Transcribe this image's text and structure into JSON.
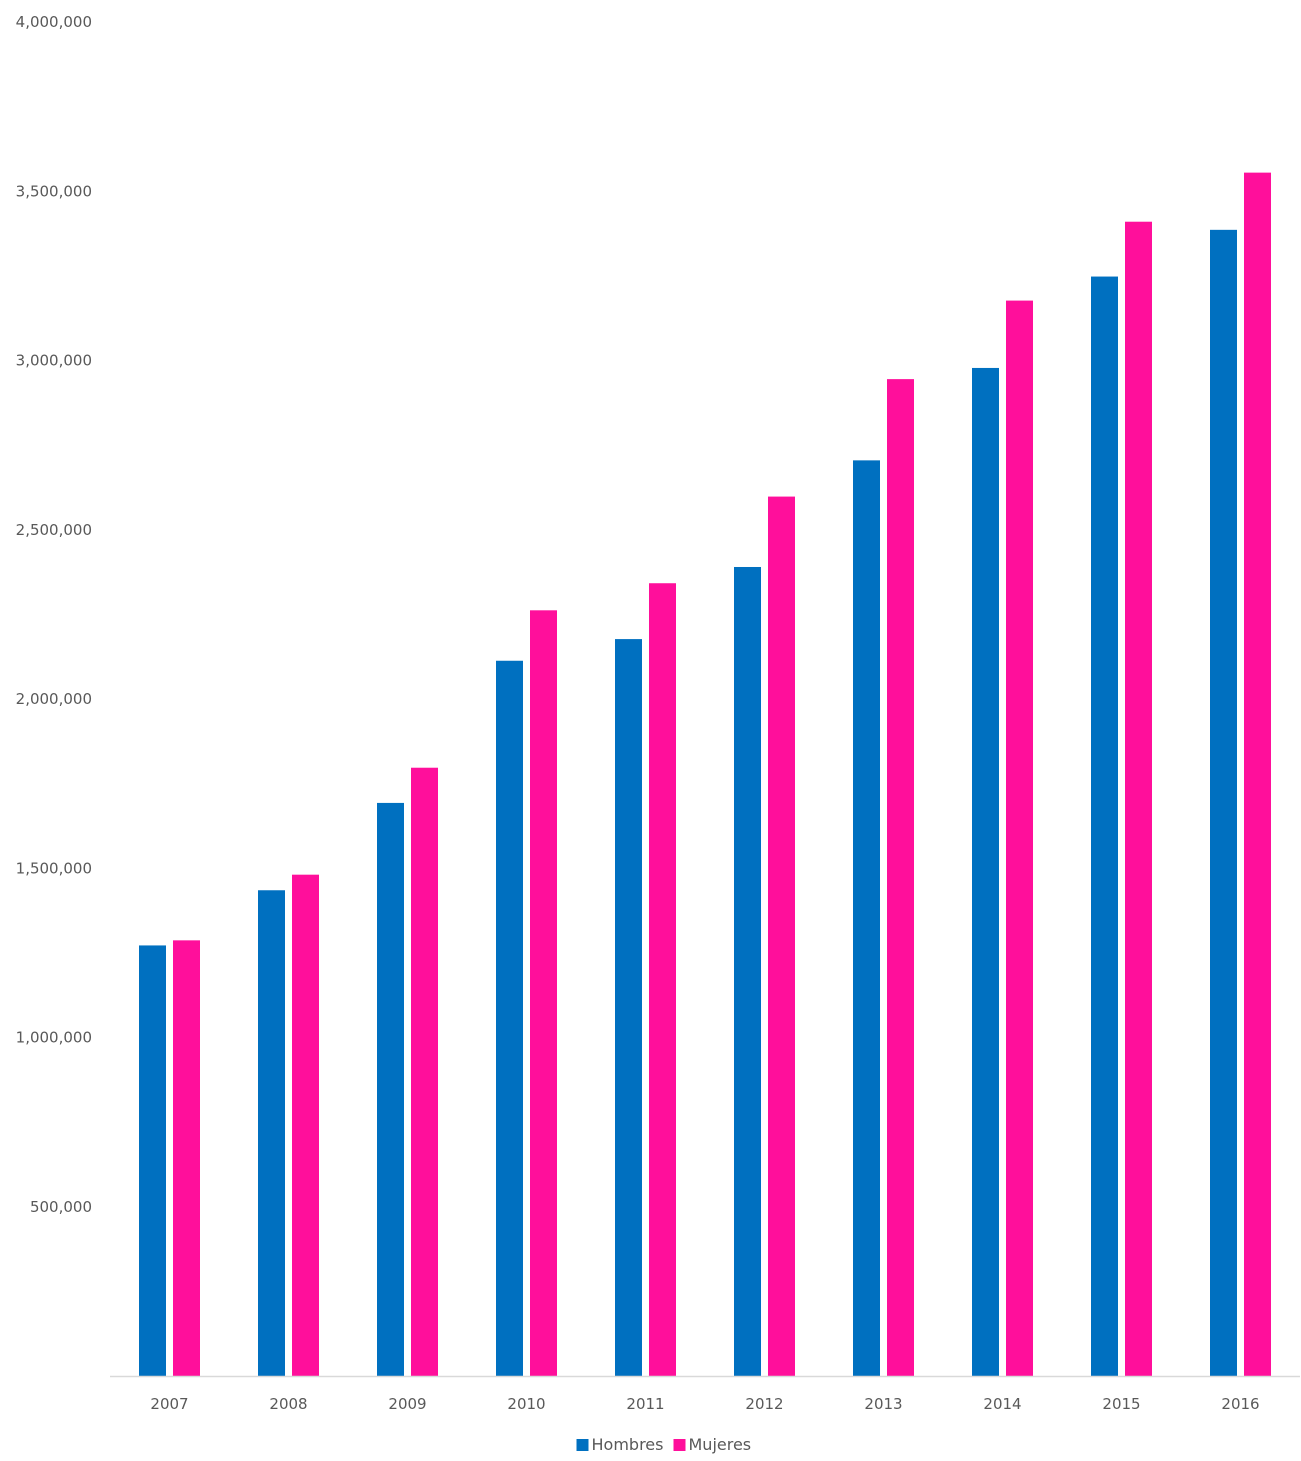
{
  "chart_data": {
    "type": "bar",
    "categories": [
      "2007",
      "2008",
      "2009",
      "2010",
      "2011",
      "2012",
      "2013",
      "2014",
      "2015",
      "2016"
    ],
    "series": [
      {
        "name": "Hombres",
        "color": "#0070C0",
        "values": [
          1272000,
          1435000,
          1693000,
          2113000,
          2177000,
          2390000,
          2705000,
          2978000,
          3248000,
          3386000
        ]
      },
      {
        "name": "Mujeres",
        "color": "#FF0F9B",
        "values": [
          1287000,
          1481000,
          1797000,
          2262000,
          2342000,
          2598000,
          2945000,
          3177000,
          3410000,
          3555000
        ]
      }
    ],
    "ylim": [
      0,
      4000000
    ],
    "yticks": [
      500000,
      1000000,
      1500000,
      2000000,
      2500000,
      3000000,
      3500000,
      4000000
    ],
    "ytick_labels": [
      "500,000",
      "1,000,000",
      "1,500,000",
      "2,000,000",
      "2,500,000",
      "3,000,000",
      "3,500,000",
      "4,000,000"
    ],
    "grid": false,
    "legend_position": "bottom-center",
    "axis_color": "#D9D9D9",
    "text_color": "#595959"
  }
}
